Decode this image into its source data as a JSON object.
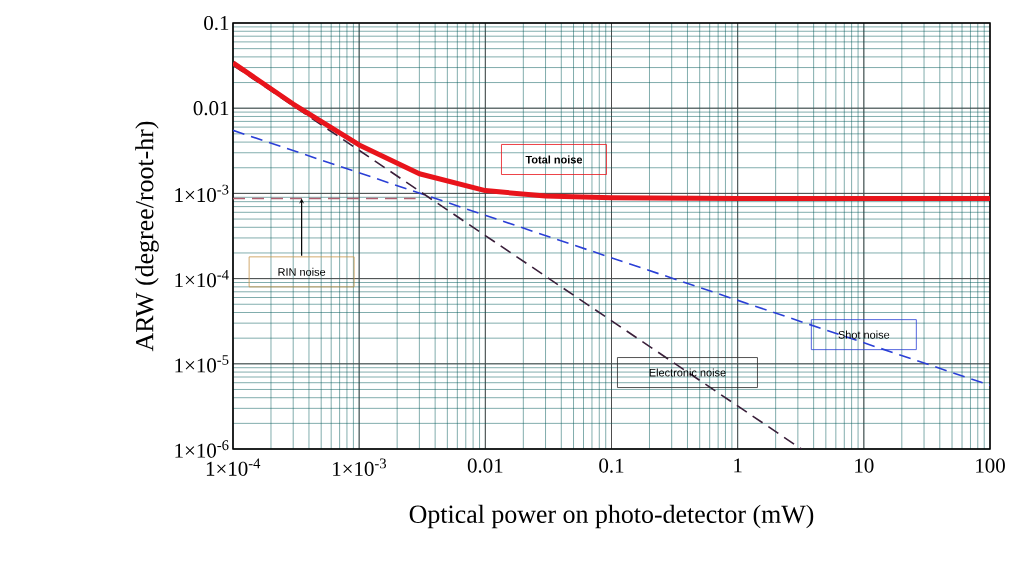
{
  "chart_data": {
    "type": "line",
    "xlabel": "Optical power on photo-detector (mW)",
    "ylabel": "ARW (degree/root-hr)",
    "log": "xy",
    "grid": true,
    "xlim": [
      0.0001,
      100
    ],
    "ylim": [
      1e-06,
      0.1
    ],
    "xticks": [
      {
        "value": 0.0001,
        "label": "1×10$^{-4}$"
      },
      {
        "value": 0.001,
        "label": "1×10$^{-3}$"
      },
      0.01,
      0.1,
      1,
      10,
      100
    ],
    "yticks": [
      {
        "value": 1e-06,
        "label": "1×10$^{-6}$"
      },
      {
        "value": 1e-05,
        "label": "1×10$^{-5}$"
      },
      {
        "value": 0.0001,
        "label": "1×10$^{-4}$"
      },
      {
        "value": 0.001,
        "label": "1×10$^{-3}$"
      },
      0.01,
      0.1
    ],
    "series": [
      {
        "name": "RIN noise",
        "color": "#b06070",
        "line_style": "dashed",
        "x": [
          0.0001,
          0.0028
        ],
        "values": [
          0.00087,
          0.00087
        ]
      },
      {
        "name": "Shot noise",
        "color": "#2a3fd6",
        "line_style": "dashed",
        "x": [
          0.0001,
          100
        ],
        "values": [
          0.0055,
          5.6e-06
        ]
      },
      {
        "name": "Electronic noise",
        "color": "#3a1f3a",
        "line_style": "dashed",
        "x": [
          0.0001,
          3.2
        ],
        "values": [
          0.032,
          1e-06
        ]
      },
      {
        "name": "Total noise",
        "color": "#e8141b",
        "line_style": "solid",
        "x": [
          0.0001,
          0.0003,
          0.001,
          0.003,
          0.01,
          0.03,
          0.1,
          1,
          100
        ],
        "values": [
          0.034,
          0.0112,
          0.0037,
          0.0017,
          0.00108,
          0.00093,
          0.00089,
          0.00087,
          0.00087
        ]
      }
    ]
  }
}
